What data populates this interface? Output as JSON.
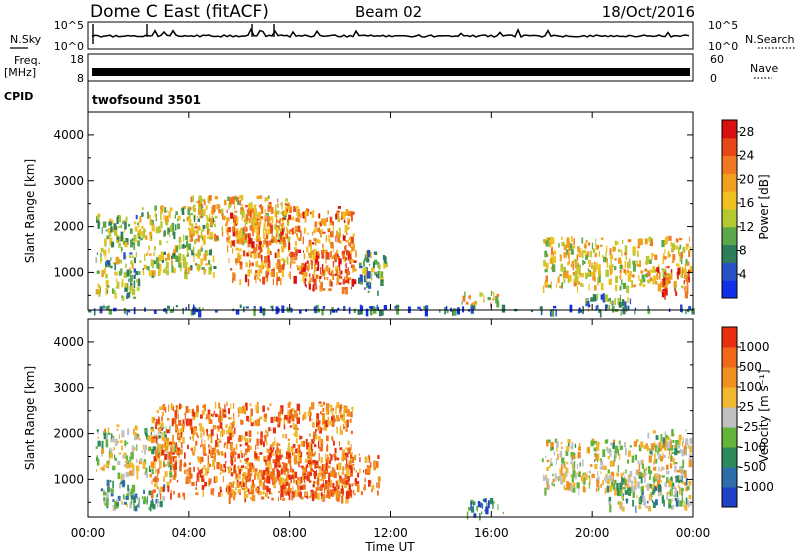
{
  "header": {
    "radar": "Dome C East (fitACF)",
    "beam": "Beam 02",
    "date": "18/Oct/2016"
  },
  "strip_labels": {
    "nsky": "N.Sky",
    "freq_1": "Freq.",
    "freq_2": "[MHz]",
    "cpid": "CPID",
    "nsearch": "N.Search",
    "nave": "Nave",
    "noise_hi": "10^5",
    "noise_lo": "10^0",
    "freq_hi": "18",
    "freq_lo": "8",
    "nave_hi": "60",
    "nave_lo": "0",
    "cpid_value": "twofsound 3501"
  },
  "chart_data": [
    {
      "type": "heatmap",
      "title": "",
      "xlabel": "",
      "ylabel": "Slant Range [km]",
      "xlim": [
        0,
        24
      ],
      "ylim": [
        180,
        4500
      ],
      "x_ticks": [
        "00:00",
        "04:00",
        "08:00",
        "12:00",
        "16:00",
        "20:00",
        "00:00"
      ],
      "y_ticks": [
        1000,
        2000,
        3000,
        4000
      ],
      "colorbar": {
        "label": "Power [dB]",
        "ticks": [
          "4",
          "8",
          "12",
          "16",
          "20",
          "24",
          "28"
        ],
        "range": [
          0,
          30
        ],
        "colors": [
          "#1030e8",
          "#2a52c8",
          "#2e7d5a",
          "#5aa84a",
          "#b4c832",
          "#f0c020",
          "#f0a020",
          "#f07820",
          "#e84818",
          "#d81010"
        ]
      },
      "regions": [
        {
          "t0": 0.3,
          "t1": 2.0,
          "r0": 450,
          "r1": 2300,
          "level": 0.4
        },
        {
          "t0": 2.0,
          "t1": 5.0,
          "r0": 1000,
          "r1": 2500,
          "level": 0.45
        },
        {
          "t0": 4.0,
          "t1": 8.0,
          "r0": 1700,
          "r1": 2700,
          "level": 0.6
        },
        {
          "t0": 5.5,
          "t1": 10.5,
          "r0": 850,
          "r1": 2450,
          "level": 0.72
        },
        {
          "t0": 8.5,
          "t1": 10.6,
          "r0": 650,
          "r1": 1500,
          "level": 0.85
        },
        {
          "t0": 10.7,
          "t1": 11.8,
          "r0": 600,
          "r1": 1500,
          "level": 0.35
        },
        {
          "t0": 14.8,
          "t1": 16.3,
          "r0": 300,
          "r1": 600,
          "level": 0.55
        },
        {
          "t0": 18.0,
          "t1": 23.9,
          "r0": 700,
          "r1": 1800,
          "level": 0.55
        },
        {
          "t0": 22.5,
          "t1": 23.8,
          "r0": 550,
          "r1": 1150,
          "level": 0.85
        },
        {
          "t0": 19.5,
          "t1": 21.5,
          "r0": 250,
          "r1": 550,
          "level": 0.3
        },
        {
          "t0": 0.0,
          "t1": 24.0,
          "r0": 180,
          "r1": 300,
          "level": 0.15
        }
      ]
    },
    {
      "type": "heatmap",
      "title": "",
      "xlabel": "Time UT",
      "ylabel": "Slant Range [km]",
      "xlim": [
        0,
        24
      ],
      "ylim": [
        180,
        4500
      ],
      "x_ticks": [
        "00:00",
        "04:00",
        "08:00",
        "12:00",
        "16:00",
        "20:00",
        "00:00"
      ],
      "y_ticks": [
        1000,
        2000,
        3000,
        4000
      ],
      "colorbar": {
        "label": "Velocity [m s⁻¹]",
        "ticks": [
          "1000",
          "500",
          "100",
          "25",
          "-25",
          "-100",
          "-500",
          "-1000"
        ],
        "colors": [
          "#2040c8",
          "#2e6ea8",
          "#2e8a5a",
          "#64b43c",
          "#c0c0c0",
          "#f0b830",
          "#f09020",
          "#f06818",
          "#e83010"
        ]
      },
      "regions": [
        {
          "t0": 0.3,
          "t1": 3.5,
          "r0": 1100,
          "r1": 2200,
          "level": 0.5
        },
        {
          "t0": 0.5,
          "t1": 3.0,
          "r0": 400,
          "r1": 1000,
          "level": 0.35
        },
        {
          "t0": 2.5,
          "t1": 10.5,
          "r0": 700,
          "r1": 2700,
          "level": 0.78
        },
        {
          "t0": 5.5,
          "t1": 11.5,
          "r0": 600,
          "r1": 1600,
          "level": 0.82
        },
        {
          "t0": 15.0,
          "t1": 16.5,
          "r0": 250,
          "r1": 600,
          "level": 0.22
        },
        {
          "t0": 18.0,
          "t1": 23.9,
          "r0": 800,
          "r1": 1900,
          "level": 0.55
        },
        {
          "t0": 20.5,
          "t1": 23.9,
          "r0": 400,
          "r1": 1100,
          "level": 0.4
        },
        {
          "t0": 22.0,
          "t1": 23.9,
          "r0": 1600,
          "r1": 2100,
          "level": 0.5
        }
      ]
    }
  ]
}
